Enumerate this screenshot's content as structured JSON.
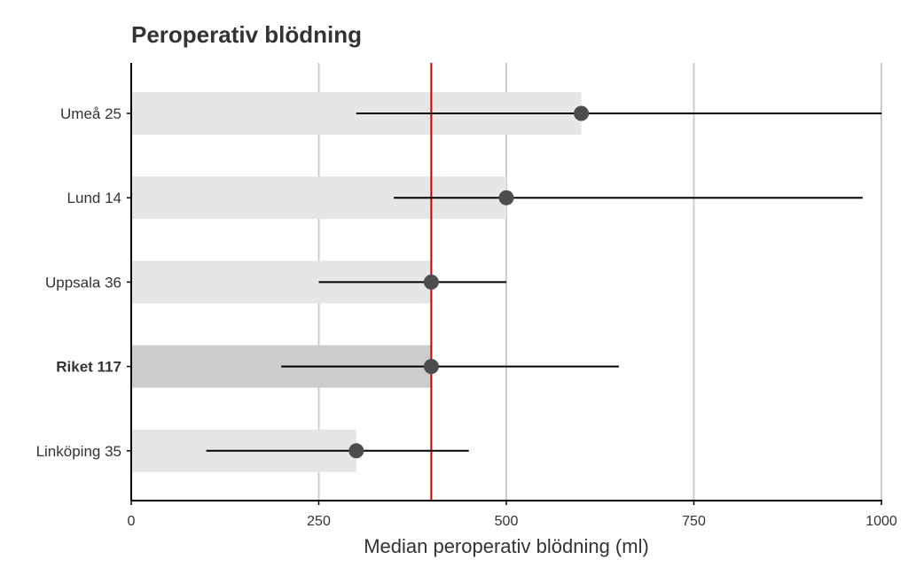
{
  "chart_data": {
    "type": "bar",
    "title": "Peroperativ blödning",
    "xlabel": "Median peroperativ blödning (ml)",
    "ylabel": "",
    "xlim": [
      0,
      1000
    ],
    "xticks": [
      0,
      250,
      500,
      750,
      1000
    ],
    "grid": "vertical",
    "orientation": "horizontal",
    "reference_line": {
      "value": 400,
      "color": "#cc0000"
    },
    "categories": [
      "Umeå 25",
      "Lund 14",
      "Uppsala 36",
      "Riket 117",
      "Linköping 35"
    ],
    "highlighted_category": "Riket 117",
    "values": [
      600,
      500,
      400,
      400,
      300
    ],
    "interval_low": [
      300,
      350,
      250,
      200,
      100
    ],
    "interval_high": [
      1000,
      975,
      500,
      650,
      450
    ],
    "colors": {
      "bar": "#e6e6e6",
      "bar_highlight": "#cccccc",
      "point": "#4d4d4d",
      "interval": "#000000",
      "grid": "#cccccc",
      "axis": "#000000"
    }
  }
}
